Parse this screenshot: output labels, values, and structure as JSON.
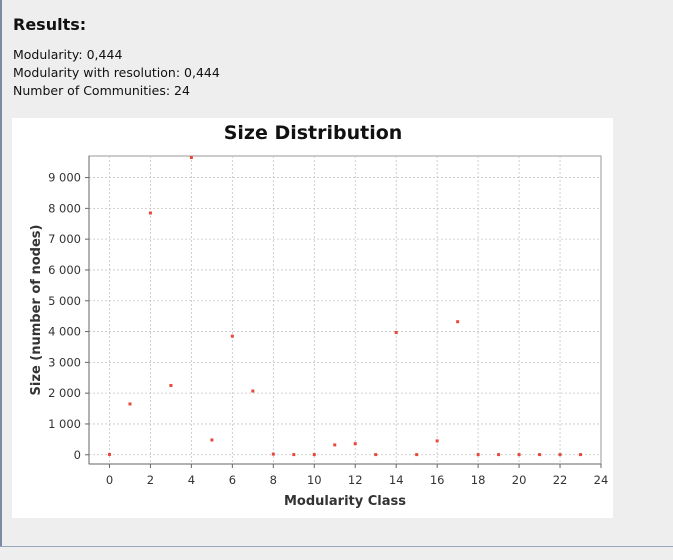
{
  "results": {
    "title": "Results:",
    "modularity_label": "Modularity: 0,444",
    "modularity_resolution_label": "Modularity with resolution: 0,444",
    "communities_label": "Number of Communities: 24"
  },
  "colors": {
    "point": "#e8483c",
    "grid": "#c4c4c4",
    "axis": "#666666"
  },
  "chart_data": {
    "type": "scatter",
    "title": "Size Distribution",
    "xlabel": "Modularity Class",
    "ylabel": "Size (number of nodes)",
    "xlim": [
      -1,
      24
    ],
    "ylim": [
      -300,
      9700
    ],
    "x_ticks": [
      0,
      2,
      4,
      6,
      8,
      10,
      12,
      14,
      16,
      18,
      20,
      22,
      24
    ],
    "y_ticks": [
      0,
      1000,
      2000,
      3000,
      4000,
      5000,
      6000,
      7000,
      8000,
      9000
    ],
    "y_tick_labels": [
      "0",
      "1 000",
      "2 000",
      "3 000",
      "4 000",
      "5 000",
      "6 000",
      "7 000",
      "8 000",
      "9 000"
    ],
    "grid": true,
    "points": [
      {
        "x": 0,
        "y": 10
      },
      {
        "x": 1,
        "y": 1650
      },
      {
        "x": 2,
        "y": 7850
      },
      {
        "x": 3,
        "y": 2250
      },
      {
        "x": 4,
        "y": 9650
      },
      {
        "x": 5,
        "y": 480
      },
      {
        "x": 6,
        "y": 3850
      },
      {
        "x": 7,
        "y": 2070
      },
      {
        "x": 8,
        "y": 20
      },
      {
        "x": 9,
        "y": 5
      },
      {
        "x": 10,
        "y": 5
      },
      {
        "x": 11,
        "y": 320
      },
      {
        "x": 12,
        "y": 360
      },
      {
        "x": 13,
        "y": 5
      },
      {
        "x": 14,
        "y": 3970
      },
      {
        "x": 15,
        "y": 5
      },
      {
        "x": 16,
        "y": 450
      },
      {
        "x": 17,
        "y": 4320
      },
      {
        "x": 18,
        "y": 5
      },
      {
        "x": 19,
        "y": 5
      },
      {
        "x": 20,
        "y": 5
      },
      {
        "x": 21,
        "y": 5
      },
      {
        "x": 22,
        "y": 5
      },
      {
        "x": 23,
        "y": 5
      }
    ]
  }
}
